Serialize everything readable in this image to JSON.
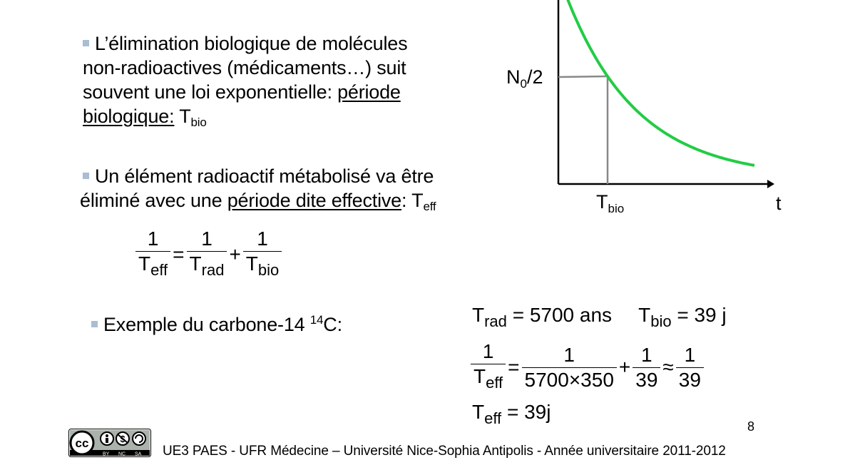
{
  "bullets": {
    "b1": {
      "line1": "L’élimination biologique de molécules",
      "line2": "non-radioactives (médicaments…) suit",
      "line3_a": "souvent une loi exponentielle: ",
      "line3_u": "période",
      "line4_u": "biologique:",
      "symbol": "T",
      "sub": "bio"
    },
    "b2": {
      "line1": "Un élément radioactif métabolisé va être",
      "line2_a": "éliminé avec une ",
      "line2_u": "période dite effective",
      "line2_b": ": T",
      "sub": "eff"
    },
    "b3": {
      "text_a": "Exemple du carbone-14 ",
      "sup": "14",
      "text_b": "C:"
    }
  },
  "formula": {
    "one": "1",
    "T": "T",
    "eff": "eff",
    "rad": "rad",
    "bio": "bio",
    "eq": "=",
    "plus": "+"
  },
  "example": {
    "line1": {
      "T": "T",
      "rad": "rad",
      "rad_value": "= 5700 ans",
      "bio": "bio",
      "bio_value": "= 39 j"
    },
    "line2": {
      "one": "1",
      "T": "T",
      "eff": "eff",
      "eq": "=",
      "den_big": "5700×350",
      "plus": "+",
      "den_39": "39",
      "approx": "≈"
    },
    "line3": {
      "T": "T",
      "eff": "eff",
      "value": "= 39j"
    }
  },
  "chart_data": {
    "type": "line",
    "title": "",
    "xlabel": "t",
    "ylabel": "",
    "y_marker_label": "N",
    "y_marker_sub": "0",
    "y_marker_suffix": "/2",
    "x_marker_label": "T",
    "x_marker_sub": "bio",
    "series": [
      {
        "color": "#22cc44",
        "function": "exponential decay"
      }
    ],
    "colors": {
      "curve": "#22cc44",
      "guide": "#888888",
      "axis": "#000000"
    }
  },
  "page_number": "8",
  "footer": {
    "text": "UE3 PAES - UFR Médecine – Université Nice-Sophia Antipolis - Année universitaire 2011-2012",
    "license_icon": "cc-by-nc-sa-icon",
    "license_lines": [
      "BY",
      "NC",
      "SA"
    ]
  }
}
